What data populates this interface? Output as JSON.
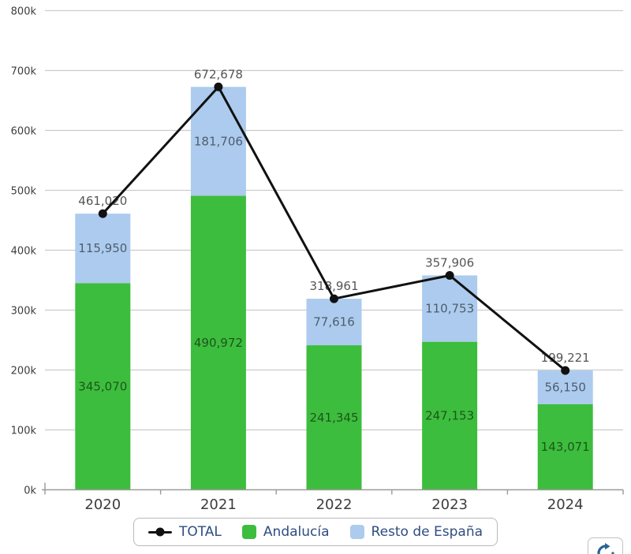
{
  "chart_data": {
    "type": "bar",
    "subtype": "stacked-bars-with-total-line",
    "title": "",
    "xlabel": "",
    "ylabel": "",
    "categories": [
      "2020",
      "2021",
      "2022",
      "2023",
      "2024"
    ],
    "series": [
      {
        "name": "TOTAL",
        "type": "line",
        "color": "#111111",
        "values": [
          461020,
          672678,
          318961,
          357906,
          199221
        ]
      },
      {
        "name": "Andalucía",
        "type": "bar",
        "color": "#3dbd3d",
        "values": [
          345070,
          490972,
          241345,
          247153,
          143071
        ]
      },
      {
        "name": "Resto de España",
        "type": "bar",
        "color": "#accbee",
        "values": [
          115950,
          181706,
          77616,
          110753,
          56150
        ]
      }
    ],
    "ylim": [
      0,
      800000
    ],
    "y_tick_step": 100000,
    "y_tick_labels": [
      "0k",
      "100k",
      "200k",
      "300k",
      "400k",
      "500k",
      "600k",
      "700k",
      "800k"
    ],
    "grid": true,
    "legend_position": "bottom"
  },
  "colors": {
    "grid": "#cccccc",
    "axis": "#9a9a9a",
    "axis_text": "#3d3d3d",
    "value_label": "rgba(0,0,0,0.55)",
    "total_label": "#555555",
    "legend_text": "#2e4d80",
    "refresh_icon": "#2a6496"
  }
}
